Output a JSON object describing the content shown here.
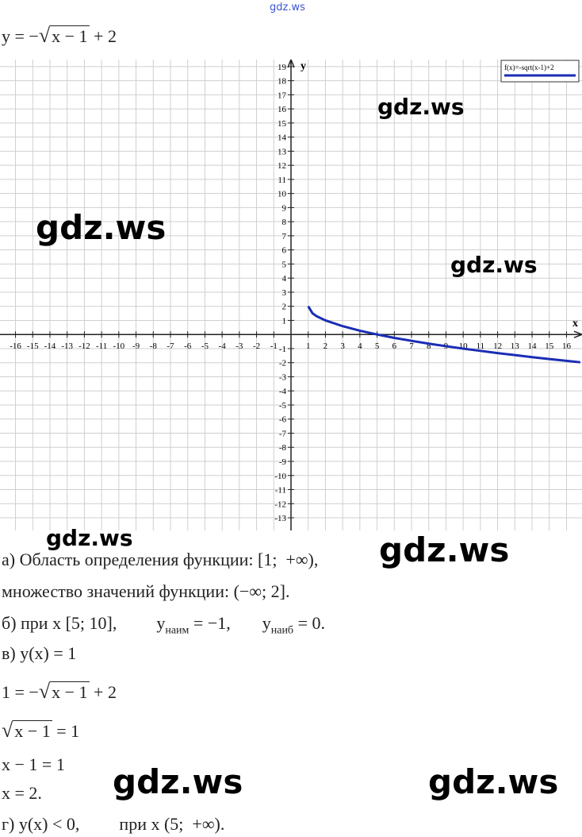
{
  "watermarks": [
    "gdz.ws",
    "gdz.ws",
    "gdz.ws",
    "gdz.ws",
    "gdz.ws",
    "gdz.ws",
    "gdz.ws",
    "gdz.ws"
  ],
  "formula": {
    "lhs": "y = −",
    "radicand": "x − 1",
    "rhs": "+ 2"
  },
  "chart_data": {
    "type": "line",
    "x": [
      1,
      1.25,
      1.5,
      2,
      3,
      4,
      5,
      6,
      7,
      8,
      9,
      10,
      11,
      12,
      13,
      14,
      15,
      16,
      16.8
    ],
    "series": [
      {
        "name": "f(x)=-sqrt(x-1)+2",
        "color": "#1a2db5",
        "values": [
          2,
          1.5,
          1.29,
          1,
          0.59,
          0.27,
          0,
          -0.24,
          -0.45,
          -0.65,
          -0.83,
          -1,
          -1.16,
          -1.32,
          -1.46,
          -1.61,
          -1.74,
          -1.87,
          -1.97
        ]
      }
    ],
    "x_label": "x",
    "y_label": "y",
    "xlim": [
      -16.9,
      16.9
    ],
    "ylim": [
      -13.9,
      19.5
    ],
    "xticks": [
      -16,
      -15,
      -14,
      -13,
      -12,
      -11,
      -10,
      -9,
      -8,
      -7,
      -6,
      -5,
      -4,
      -3,
      -2,
      -1,
      1,
      2,
      3,
      4,
      5,
      6,
      7,
      8,
      9,
      10,
      11,
      12,
      13,
      14,
      15,
      16
    ],
    "yticks": [
      -13,
      -12,
      -11,
      -10,
      -9,
      -8,
      -7,
      -6,
      -5,
      -4,
      -3,
      -2,
      -1,
      1,
      2,
      3,
      4,
      5,
      6,
      7,
      8,
      9,
      10,
      11,
      12,
      13,
      14,
      15,
      16,
      17,
      18,
      19
    ],
    "grid": true,
    "legend": "top-right"
  },
  "solution": {
    "domain": "а) Область определения функции: [1;  +∞),",
    "range": "множество значений функции: (−∞; 2].",
    "b": {
      "text": "б) при x [5; 10],",
      "min_sym": "y",
      "min_sub": "наим",
      "min_val": "= −1,",
      "max_sym": "y",
      "max_sub": "наиб",
      "max_val": "= 0."
    },
    "v": "в) y(x) = 1",
    "eq1": {
      "lhs": "1 = −",
      "radicand": "x − 1",
      "rhs": "+ 2"
    },
    "eq2": {
      "radicand": "x − 1",
      "rhs": "= 1"
    },
    "eq3": "x − 1 = 1",
    "eq4": "x = 2.",
    "g": {
      "text": "г) y(x) < 0,",
      "cond": "при x (5;  +∞)."
    }
  }
}
